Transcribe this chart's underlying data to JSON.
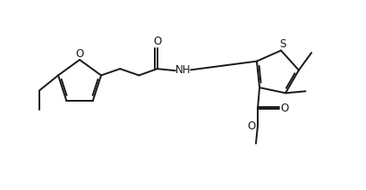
{
  "bg_color": "#ffffff",
  "line_color": "#1a1a1a",
  "line_width": 1.4,
  "font_size": 8.5,
  "xlim": [
    0,
    10
  ],
  "ylim": [
    0,
    5.2
  ]
}
